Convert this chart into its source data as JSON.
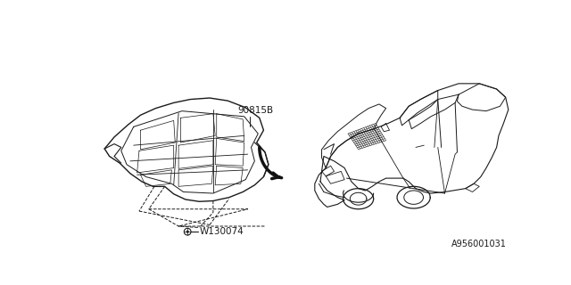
{
  "bg_color": "#ffffff",
  "line_color": "#1a1a1a",
  "label_90815B": "90815B",
  "label_w130074": "W130074",
  "label_ref": "A956001031"
}
